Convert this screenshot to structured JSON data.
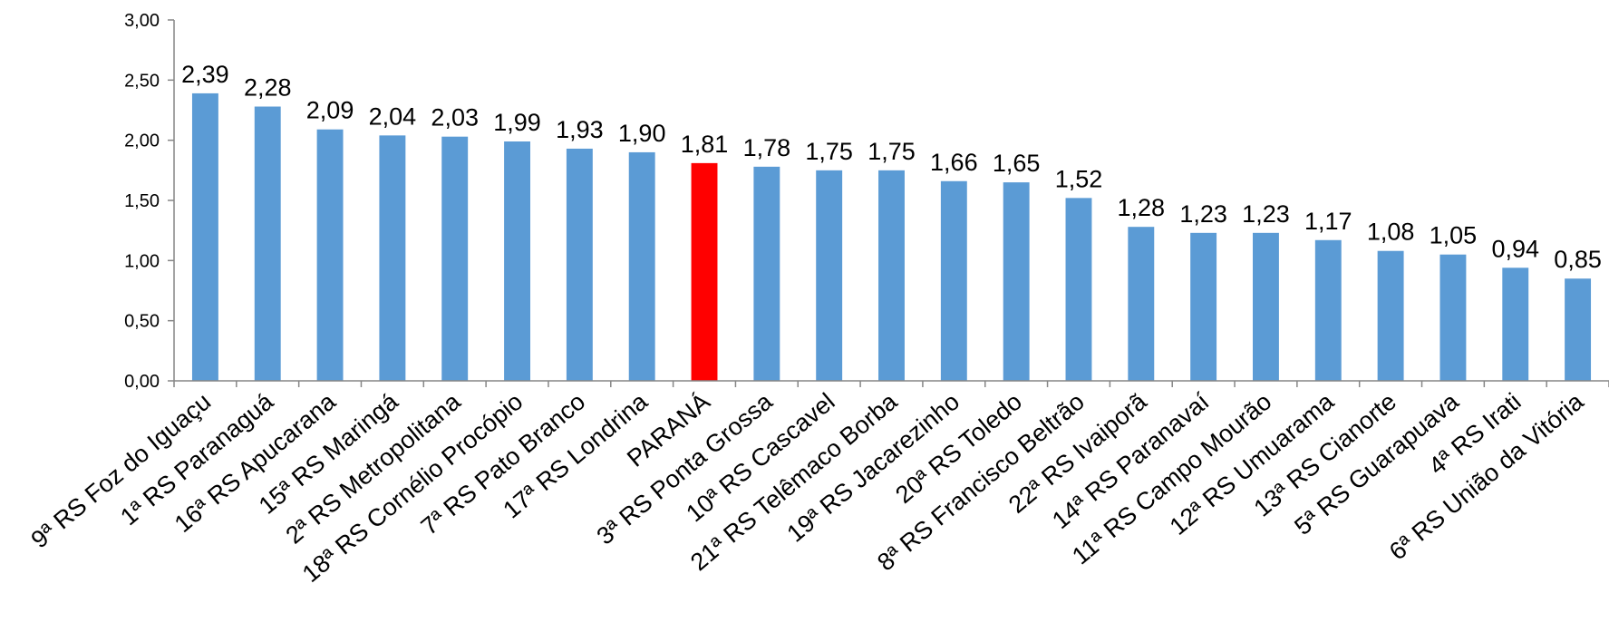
{
  "chart_data": {
    "type": "bar",
    "title": "",
    "xlabel": "",
    "ylabel": "",
    "ylim": [
      0,
      3
    ],
    "yticks": [
      "0,00",
      "0,50",
      "1,00",
      "1,50",
      "2,00",
      "2,50",
      "3,00"
    ],
    "grid": false,
    "legend": "none",
    "bar_color": "#5b9bd5",
    "highlight_color": "#ff0000",
    "highlight_category": "PARANÁ",
    "categories": [
      "9ª RS Foz do Iguaçu",
      "1ª RS Paranaguá",
      "16ª RS Apucarana",
      "15ª RS Maringá",
      "2ª RS Metropolitana",
      "18ª RS Cornélio Procópio",
      "7ª RS Pato Branco",
      "17ª RS Londrina",
      "PARANÁ",
      "3ª RS Ponta Grossa",
      "10ª RS Cascavel",
      "21ª RS Telêmaco Borba",
      "19ª RS Jacarezinho",
      "20ª RS Toledo",
      "8ª RS Francisco Beltrão",
      "22ª RS Ivaiporã",
      "14ª RS Paranavaí",
      "11ª RS Campo Mourão",
      "12ª RS Umuarama",
      "13ª RS Cianorte",
      "5ª RS Guarapuava",
      "4ª RS Irati",
      "6ª RS União da Vitória"
    ],
    "values": [
      2.39,
      2.28,
      2.09,
      2.04,
      2.03,
      1.99,
      1.93,
      1.9,
      1.81,
      1.78,
      1.75,
      1.75,
      1.66,
      1.65,
      1.52,
      1.28,
      1.23,
      1.23,
      1.17,
      1.08,
      1.05,
      0.94,
      0.85
    ],
    "data_labels": [
      "2,39",
      "2,28",
      "2,09",
      "2,04",
      "2,03",
      "1,99",
      "1,93",
      "1,90",
      "1,81",
      "1,78",
      "1,75",
      "1,75",
      "1,66",
      "1,65",
      "1,52",
      "1,28",
      "1,23",
      "1,23",
      "1,17",
      "1,08",
      "1,05",
      "0,94",
      "0,85"
    ]
  }
}
